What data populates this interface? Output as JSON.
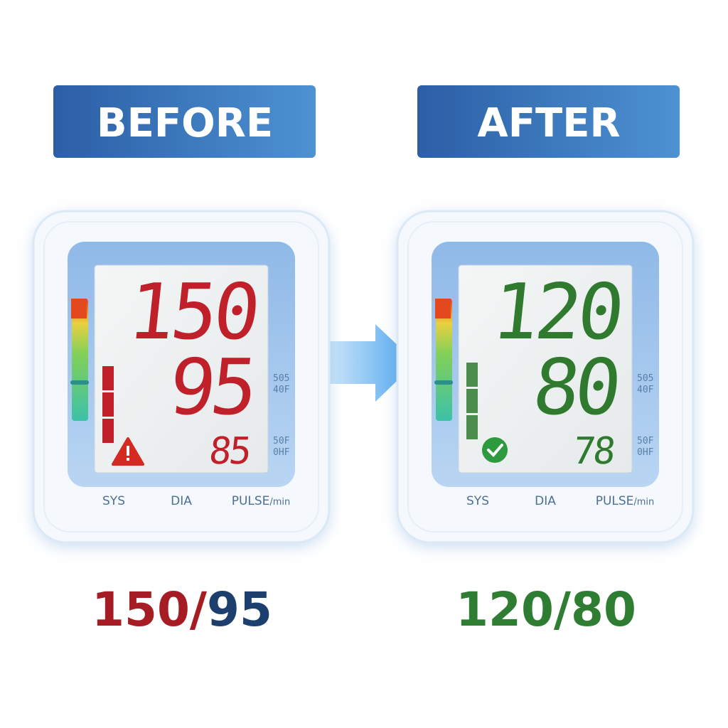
{
  "panels": [
    {
      "label": "BEFORE",
      "sys": "150",
      "dia": "95",
      "pulse": "85",
      "color": "#c0202a",
      "status": "warning",
      "side_marks": [
        "505",
        "40F",
        "50F",
        "0HF"
      ],
      "summary": {
        "sys": "150",
        "separator": "/",
        "dia": "95",
        "sys_color": "#a61c24",
        "dia_color": "#1d3f6e"
      }
    },
    {
      "label": "AFTER",
      "sys": "120",
      "dia": "80",
      "pulse": "78",
      "color": "#2f7a2f",
      "status": "ok",
      "side_marks": [
        "505",
        "40F",
        "50F",
        "0HF"
      ],
      "summary": {
        "sys": "120",
        "separator": "/",
        "dia": "80",
        "sys_color": "#2f7d32",
        "dia_color": "#2f7d32"
      }
    }
  ],
  "field_labels": {
    "sys": "SYS",
    "dia": "DIA",
    "pulse": "PULSE",
    "pulse_unit": "/min"
  }
}
